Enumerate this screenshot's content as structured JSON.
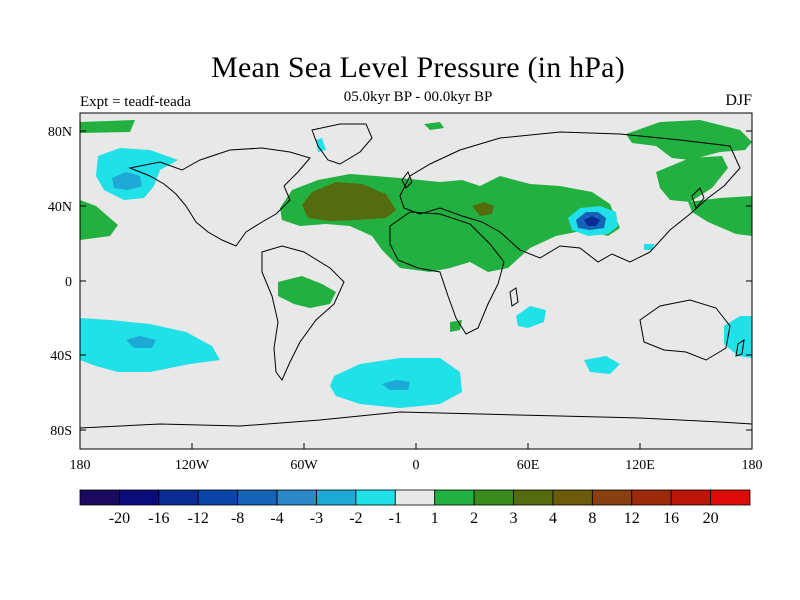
{
  "title": "Mean Sea Level Pressure (in hPa)",
  "subtitle": "05.0kyr BP - 00.0kyr BP",
  "experiment": "Expt = teadf-teada",
  "season": "DJF",
  "latitude_labels": [
    "80N",
    "40N",
    "0",
    "40S",
    "80S"
  ],
  "longitude_labels": [
    "180",
    "120W",
    "60W",
    "0",
    "60E",
    "120E",
    "180"
  ],
  "colorbar": {
    "colors": [
      "#1a0a5e",
      "#0b0b7a",
      "#0a2a94",
      "#0a45a8",
      "#1463b6",
      "#2a87c8",
      "#1ea8d6",
      "#20e0e8",
      "#e8e8e8",
      "#22b040",
      "#3a8a1e",
      "#556b10",
      "#6b5a0a",
      "#884010",
      "#9c2a0a",
      "#bb1408",
      "#dd0a0a"
    ],
    "labels": [
      "-20",
      "-16",
      "-12",
      "-8",
      "-4",
      "-3",
      "-2",
      "-1",
      "1",
      "2",
      "3",
      "4",
      "8",
      "12",
      "16",
      "20"
    ]
  },
  "colors": {
    "background": "#e8e8e8",
    "positive_1_2": "#22b040",
    "positive_3_4": "#556b10",
    "negative_1_2": "#20e0e8",
    "negative_2_3": "#1ea8d6"
  }
}
